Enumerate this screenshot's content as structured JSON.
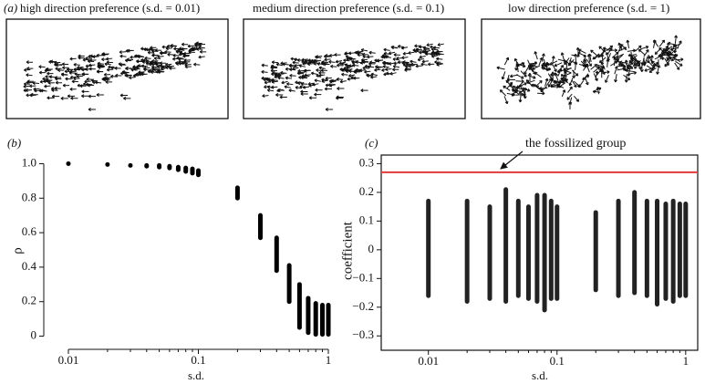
{
  "panel_a": {
    "label": "(a)",
    "titles": [
      "high direction preference (s.d. = 0.01)",
      "medium direction preference (s.d. = 0.1)",
      "low direction preference (s.d. = 1)"
    ]
  },
  "chart_data": [
    {
      "type": "scatter",
      "label": "(b)",
      "xlabel": "s.d.",
      "ylabel": "ρ",
      "xlog": true,
      "frame": false,
      "color": "#000000",
      "x": [
        0.01,
        0.02,
        0.03,
        0.04,
        0.05,
        0.06,
        0.07,
        0.08,
        0.09,
        0.1,
        0.2,
        0.3,
        0.4,
        0.5,
        0.6,
        0.7,
        0.8,
        0.9,
        1
      ],
      "low": [
        1.0,
        0.995,
        0.99,
        0.985,
        0.98,
        0.975,
        0.965,
        0.955,
        0.945,
        0.935,
        0.8,
        0.57,
        0.38,
        0.2,
        0.05,
        0.02,
        0.01,
        0.01,
        0.01
      ],
      "high": [
        1.0,
        0.995,
        0.99,
        0.99,
        0.99,
        0.985,
        0.98,
        0.975,
        0.97,
        0.96,
        0.86,
        0.7,
        0.57,
        0.41,
        0.3,
        0.22,
        0.19,
        0.18,
        0.18
      ],
      "xlim": [
        0.00724,
        1.175
      ],
      "ylim": [
        -0.05,
        1.05
      ],
      "xticks": [
        0.01,
        0.1,
        1
      ],
      "xminor": [
        0.02,
        0.03,
        0.04,
        0.05,
        0.06,
        0.07,
        0.08,
        0.09,
        0.2,
        0.3,
        0.4,
        0.5,
        0.6,
        0.7,
        0.8,
        0.9
      ],
      "yticks": [
        0,
        0.2,
        0.4,
        0.6,
        0.8,
        {
          "value": 1,
          "label": "1.0"
        }
      ]
    },
    {
      "type": "scatter",
      "label": "(c)",
      "xlabel": "s.d.",
      "ylabel": "coefficient",
      "xlog": true,
      "frame": true,
      "color": "#222222",
      "x": [
        0.01,
        0.02,
        0.03,
        0.04,
        0.05,
        0.06,
        0.07,
        0.08,
        0.09,
        0.1,
        0.2,
        0.3,
        0.4,
        0.5,
        0.6,
        0.7,
        0.8,
        0.9,
        1
      ],
      "low": [
        -0.16,
        -0.18,
        -0.17,
        -0.18,
        -0.16,
        -0.17,
        -0.18,
        -0.21,
        -0.17,
        -0.17,
        -0.14,
        -0.16,
        -0.15,
        -0.16,
        -0.19,
        -0.17,
        -0.18,
        -0.16,
        -0.16
      ],
      "high": [
        0.17,
        0.17,
        0.15,
        0.21,
        0.17,
        0.15,
        0.19,
        0.19,
        0.17,
        0.15,
        0.13,
        0.17,
        0.2,
        0.17,
        0.17,
        0.16,
        0.17,
        0.16,
        0.16
      ],
      "xlim": [
        0.0043,
        1.24
      ],
      "ylim": [
        -0.35,
        0.33
      ],
      "xticks": [
        0.01,
        0.1,
        1
      ],
      "xminor": [
        0.02,
        0.03,
        0.04,
        0.05,
        0.06,
        0.07,
        0.08,
        0.09,
        0.2,
        0.3,
        0.4,
        0.5,
        0.6,
        0.7,
        0.8,
        0.9
      ],
      "yticks": [
        {
          "value": -0.3,
          "label": "−0.3"
        },
        {
          "value": -0.2,
          "label": "−0.2"
        },
        {
          "value": -0.1,
          "label": "−0.1"
        },
        0,
        0.1,
        0.2,
        0.3
      ],
      "reference": {
        "value": 0.27,
        "color": "#e0393e",
        "text": "the fossilized group"
      }
    }
  ]
}
